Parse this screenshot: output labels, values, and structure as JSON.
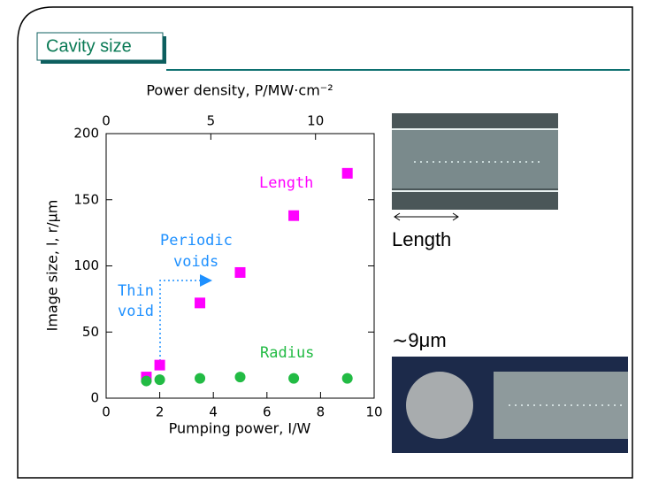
{
  "slide": {
    "title": "Cavity size",
    "captions": [
      "Length",
      "∼9μm"
    ]
  },
  "chart_data": {
    "type": "scatter",
    "xlabel": "Pumping power, I/W",
    "ylabel": "Image size,  l, r/μm",
    "x2label": "Power density, P/MW·cm⁻²",
    "xlim": [
      0,
      10
    ],
    "xticks": [
      0,
      2,
      4,
      6,
      8,
      10
    ],
    "ylim": [
      0,
      200
    ],
    "yticks": [
      0,
      50,
      100,
      150,
      200
    ],
    "x2lim": [
      0,
      12.8
    ],
    "x2ticks": [
      0,
      5,
      10
    ],
    "grid": false,
    "annotations": [
      [
        "Periodic",
        "voids"
      ],
      [
        "Thin",
        "void"
      ]
    ],
    "annotation_color": "#1e90ff",
    "series": [
      {
        "name": "Length",
        "color": "#ff00ff",
        "marker": "square",
        "x": [
          1.5,
          2,
          3.5,
          5,
          7,
          9
        ],
        "values": [
          16,
          25,
          72,
          95,
          138,
          170
        ]
      },
      {
        "name": "Radius",
        "color": "#22bb44",
        "marker": "circle",
        "x": [
          1.5,
          2,
          3.5,
          5,
          7,
          9
        ],
        "values": [
          13,
          14,
          15,
          16,
          15,
          15
        ]
      }
    ]
  }
}
